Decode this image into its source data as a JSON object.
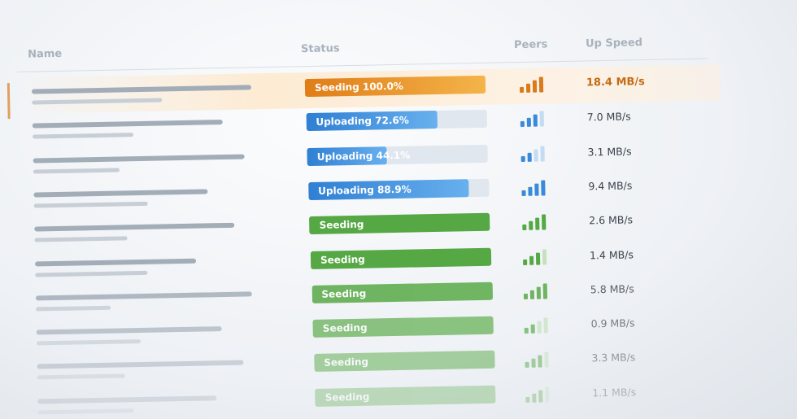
{
  "header": {
    "columns": [
      "Name",
      "Status",
      "Peers",
      "Up Speed"
    ]
  },
  "rows": [
    {
      "status": "Seeding 100.0%",
      "progress": 100.0,
      "peers": 4,
      "up_speed": "18.4 MB/s"
    },
    {
      "status": "Uploading 72.6%",
      "progress": 72.6,
      "peers": 3,
      "up_speed": "7.0 MB/s"
    },
    {
      "status": "Uploading 44.1%",
      "progress": 44.1,
      "peers": 2,
      "up_speed": "3.1 MB/s"
    },
    {
      "status": "Uploading 88.9%",
      "progress": 88.9,
      "peers": 4,
      "up_speed": "9.4 MB/s"
    },
    {
      "status": "Seeding",
      "progress": 100,
      "peers": 4,
      "up_speed": "2.6 MB/s"
    },
    {
      "status": "Seeding",
      "progress": 100,
      "peers": 3,
      "up_speed": "1.4 MB/s"
    },
    {
      "status": "Seeding",
      "progress": 100,
      "peers": 4,
      "up_speed": "5.8 MB/s"
    },
    {
      "status": "Seeding",
      "progress": 100,
      "peers": 2,
      "up_speed": "0.9 MB/s"
    },
    {
      "status": "Seeding",
      "progress": 100,
      "peers": 3,
      "up_speed": "3.3 MB/s"
    },
    {
      "status": "Seeding",
      "progress": 100,
      "peers": 3,
      "up_speed": "1.1 MB/s"
    }
  ]
}
